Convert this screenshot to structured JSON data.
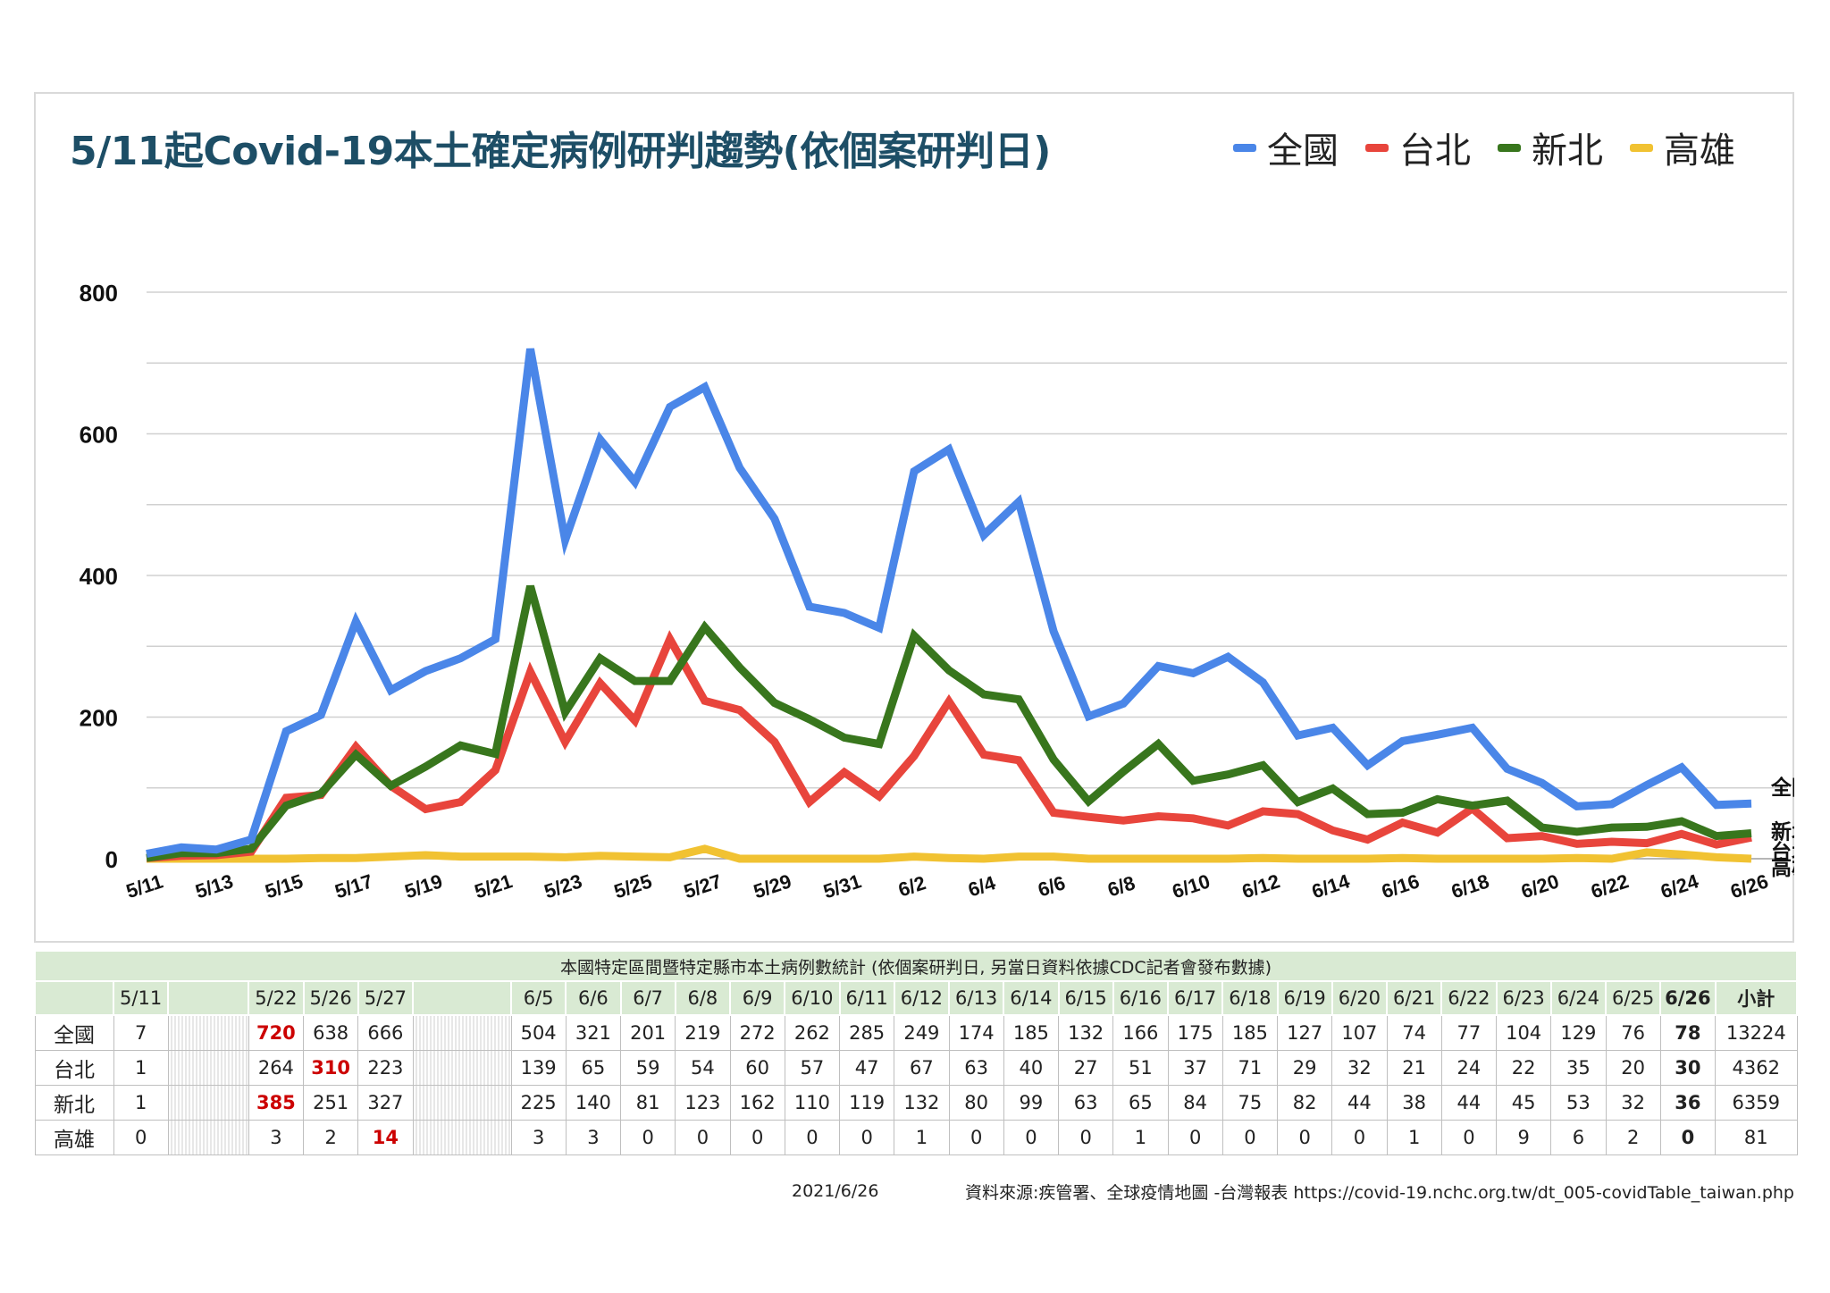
{
  "title": "5/11起Covid-19本土確定病例研判趨勢(依個案研判日)",
  "legend": [
    {
      "name": "全國",
      "color": "#4a86e8"
    },
    {
      "name": "台北",
      "color": "#e8453c"
    },
    {
      "name": "新北",
      "color": "#38761d"
    },
    {
      "name": "高雄",
      "color": "#f1c232"
    }
  ],
  "chart_data": {
    "type": "line",
    "title": "5/11起Covid-19本土確定病例研判趨勢(依個案研判日)",
    "xlabel": "",
    "ylabel": "",
    "ylim": [
      0,
      800
    ],
    "yticks": [
      0,
      200,
      400,
      600,
      800
    ],
    "grid": true,
    "legend_position": "top-right",
    "x": [
      "5/11",
      "5/12",
      "5/13",
      "5/14",
      "5/15",
      "5/16",
      "5/17",
      "5/18",
      "5/19",
      "5/20",
      "5/21",
      "5/22",
      "5/23",
      "5/24",
      "5/25",
      "5/26",
      "5/27",
      "5/28",
      "5/29",
      "5/30",
      "5/31",
      "6/1",
      "6/2",
      "6/3",
      "6/4",
      "6/5",
      "6/6",
      "6/7",
      "6/8",
      "6/9",
      "6/10",
      "6/11",
      "6/12",
      "6/13",
      "6/14",
      "6/15",
      "6/16",
      "6/17",
      "6/18",
      "6/19",
      "6/20",
      "6/21",
      "6/22",
      "6/23",
      "6/24",
      "6/25",
      "6/26"
    ],
    "x_tick_labels": [
      "5/11",
      "5/13",
      "5/15",
      "5/17",
      "5/19",
      "5/21",
      "5/23",
      "5/25",
      "5/27",
      "5/29",
      "5/31",
      "6/2",
      "6/4",
      "6/6",
      "6/8",
      "6/10",
      "6/12",
      "6/14",
      "6/16",
      "6/18",
      "6/20",
      "6/22",
      "6/24",
      "6/26"
    ],
    "series": [
      {
        "name": "全國",
        "color": "#4a86e8",
        "values": [
          7,
          16,
          13,
          27,
          180,
          203,
          335,
          238,
          265,
          283,
          310,
          720,
          450,
          592,
          532,
          638,
          666,
          552,
          480,
          356,
          347,
          326,
          547,
          578,
          457,
          504,
          321,
          201,
          219,
          272,
          262,
          285,
          249,
          174,
          185,
          132,
          166,
          175,
          185,
          127,
          107,
          74,
          77,
          104,
          129,
          76,
          78
        ]
      },
      {
        "name": "台北",
        "color": "#e8453c",
        "values": [
          1,
          4,
          5,
          10,
          86,
          90,
          158,
          103,
          70,
          80,
          125,
          264,
          165,
          248,
          195,
          310,
          223,
          210,
          165,
          80,
          122,
          88,
          145,
          222,
          147,
          139,
          65,
          59,
          54,
          60,
          57,
          47,
          67,
          63,
          40,
          27,
          51,
          37,
          71,
          29,
          32,
          21,
          24,
          22,
          35,
          20,
          30
        ]
      },
      {
        "name": "新北",
        "color": "#38761d",
        "values": [
          1,
          8,
          8,
          14,
          75,
          92,
          147,
          103,
          130,
          160,
          148,
          385,
          207,
          283,
          251,
          251,
          327,
          270,
          220,
          197,
          171,
          162,
          315,
          266,
          232,
          225,
          140,
          81,
          123,
          162,
          110,
          119,
          132,
          80,
          99,
          63,
          65,
          84,
          75,
          82,
          44,
          38,
          44,
          45,
          53,
          32,
          36
        ]
      },
      {
        "name": "高雄",
        "color": "#f1c232",
        "values": [
          0,
          0,
          0,
          0,
          0,
          1,
          1,
          3,
          5,
          3,
          3,
          3,
          2,
          4,
          3,
          2,
          14,
          0,
          0,
          0,
          0,
          0,
          3,
          1,
          0,
          3,
          3,
          0,
          0,
          0,
          0,
          0,
          1,
          0,
          0,
          0,
          1,
          0,
          0,
          0,
          0,
          1,
          0,
          9,
          6,
          2,
          0
        ]
      }
    ],
    "end_labels": [
      "全國",
      "新北",
      "台北",
      "高雄"
    ]
  },
  "table": {
    "caption": "本國特定區間暨特定縣市本土病例數統計 (依個案研判日, 另當日資料依據CDC記者會發布數據)",
    "columns": [
      "5/11",
      "",
      "5/22",
      "5/26",
      "5/27",
      "",
      "6/5",
      "6/6",
      "6/7",
      "6/8",
      "6/9",
      "6/10",
      "6/11",
      "6/12",
      "6/13",
      "6/14",
      "6/15",
      "6/16",
      "6/17",
      "6/18",
      "6/19",
      "6/20",
      "6/21",
      "6/22",
      "6/23",
      "6/24",
      "6/25",
      "6/26",
      "小計"
    ],
    "rows": [
      {
        "label": "全國",
        "cells": [
          "7",
          "",
          "720",
          "638",
          "666",
          "",
          "504",
          "321",
          "201",
          "219",
          "272",
          "262",
          "285",
          "249",
          "174",
          "185",
          "132",
          "166",
          "175",
          "185",
          "127",
          "107",
          "74",
          "77",
          "104",
          "129",
          "76",
          "78",
          "13224"
        ]
      },
      {
        "label": "台北",
        "cells": [
          "1",
          "",
          "264",
          "310",
          "223",
          "",
          "139",
          "65",
          "59",
          "54",
          "60",
          "57",
          "47",
          "67",
          "63",
          "40",
          "27",
          "51",
          "37",
          "71",
          "29",
          "32",
          "21",
          "24",
          "22",
          "35",
          "20",
          "30",
          "4362"
        ]
      },
      {
        "label": "新北",
        "cells": [
          "1",
          "",
          "385",
          "251",
          "327",
          "",
          "225",
          "140",
          "81",
          "123",
          "162",
          "110",
          "119",
          "132",
          "80",
          "99",
          "63",
          "65",
          "84",
          "75",
          "82",
          "44",
          "38",
          "44",
          "45",
          "53",
          "32",
          "36",
          "6359"
        ]
      },
      {
        "label": "高雄",
        "cells": [
          "0",
          "",
          "3",
          "2",
          "14",
          "",
          "3",
          "3",
          "0",
          "0",
          "0",
          "0",
          "0",
          "1",
          "0",
          "0",
          "0",
          "1",
          "0",
          "0",
          "0",
          "0",
          "1",
          "0",
          "9",
          "6",
          "2",
          "0",
          "81"
        ]
      }
    ],
    "highlights_red": [
      [
        0,
        2
      ],
      [
        1,
        3
      ],
      [
        2,
        2
      ],
      [
        3,
        4
      ]
    ]
  },
  "footer": {
    "date": "2021/6/26",
    "source": "資料來源:疾管署、全球疫情地圖 -台灣報表 https://covid-19.nchc.org.tw/dt_005-covidTable_taiwan.php"
  }
}
